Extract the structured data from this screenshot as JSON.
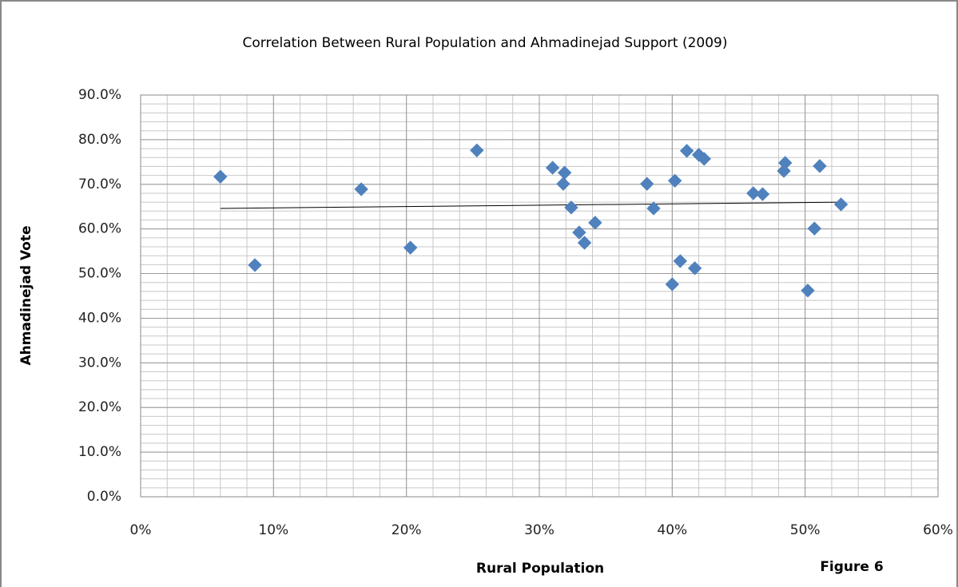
{
  "chart_data": {
    "type": "scatter",
    "title": "Correlation Between Rural Population and Ahmadinejad Support (2009)",
    "x_label": "Rural Population",
    "y_label": "Ahmadinejad Vote",
    "annotation": "Figure 6",
    "x": [
      6.0,
      8.6,
      16.6,
      20.3,
      25.3,
      31.0,
      31.9,
      31.8,
      32.4,
      33.0,
      33.4,
      34.2,
      38.1,
      38.6,
      40.2,
      40.0,
      40.6,
      41.1,
      41.7,
      42.0,
      42.4,
      46.1,
      46.8,
      48.4,
      48.5,
      51.1,
      50.7,
      50.2,
      52.7
    ],
    "series": [
      {
        "color": "#4f81bd",
        "values": [
          71.7,
          51.9,
          68.9,
          55.8,
          77.6,
          73.7,
          72.6,
          70.1,
          64.8,
          59.2,
          56.9,
          61.4,
          70.1,
          64.6,
          70.8,
          47.6,
          52.8,
          77.5,
          51.2,
          76.6,
          75.7,
          68.0,
          67.8,
          73.0,
          74.8,
          74.1,
          60.1,
          46.2,
          65.5
        ]
      }
    ],
    "trendline": {
      "x": [
        6.0,
        52.8
      ],
      "y": [
        64.6,
        66.0
      ],
      "color": "#000000"
    },
    "xlim": [
      0,
      60
    ],
    "ylim": [
      0,
      90
    ],
    "xticks": [
      {
        "value": 0,
        "label": "0%"
      },
      {
        "value": 10,
        "label": "10%"
      },
      {
        "value": 20,
        "label": "20%"
      },
      {
        "value": 30,
        "label": "30%"
      },
      {
        "value": 40,
        "label": "40%"
      },
      {
        "value": 50,
        "label": "50%"
      },
      {
        "value": 60,
        "label": "60%"
      }
    ],
    "yticks": [
      {
        "value": 0,
        "label": "0.0%"
      },
      {
        "value": 10,
        "label": "10.0%"
      },
      {
        "value": 20,
        "label": "20.0%"
      },
      {
        "value": 30,
        "label": "30.0%"
      },
      {
        "value": 40,
        "label": "40.0%"
      },
      {
        "value": 50,
        "label": "50.0%"
      },
      {
        "value": 60,
        "label": "60.0%"
      },
      {
        "value": 70,
        "label": "70.0%"
      },
      {
        "value": 80,
        "label": "80.0%"
      },
      {
        "value": 90,
        "label": "90.0%"
      }
    ],
    "grid": true,
    "minor_grid_step": 2
  }
}
